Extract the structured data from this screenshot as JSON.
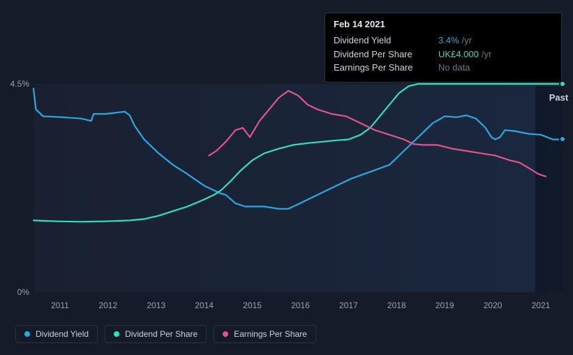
{
  "chart": {
    "type": "line",
    "background_color": "#151b29",
    "plot_gradient": [
      "rgba(30,40,60,0.4)",
      "rgba(30,50,80,0.55)"
    ],
    "past_overlay_color": "rgba(10,15,25,0.55)",
    "past_label": "Past",
    "past_start_x": 10.43,
    "grid_color": "#2a3240",
    "text_color": "#9aa3b2",
    "xlim": [
      0,
      11
    ],
    "ylim": [
      0,
      4.5
    ],
    "y_ticks": [
      {
        "v": 4.5,
        "label": "4.5%"
      },
      {
        "v": 0,
        "label": "0%"
      }
    ],
    "x_ticks": [
      {
        "v": 0.55,
        "label": "2011"
      },
      {
        "v": 1.55,
        "label": "2012"
      },
      {
        "v": 2.55,
        "label": "2013"
      },
      {
        "v": 3.55,
        "label": "2014"
      },
      {
        "v": 4.55,
        "label": "2015"
      },
      {
        "v": 5.55,
        "label": "2016"
      },
      {
        "v": 6.55,
        "label": "2017"
      },
      {
        "v": 7.55,
        "label": "2018"
      },
      {
        "v": 8.55,
        "label": "2019"
      },
      {
        "v": 9.55,
        "label": "2020"
      },
      {
        "v": 10.55,
        "label": "2021"
      }
    ],
    "line_width": 2.2,
    "series": [
      {
        "id": "dividend_yield",
        "label": "Dividend Yield",
        "color": "#2aa8e0",
        "end_dot": true,
        "points": [
          [
            0.0,
            4.4
          ],
          [
            0.05,
            3.95
          ],
          [
            0.2,
            3.8
          ],
          [
            0.6,
            3.78
          ],
          [
            1.0,
            3.75
          ],
          [
            1.2,
            3.7
          ],
          [
            1.25,
            3.85
          ],
          [
            1.5,
            3.85
          ],
          [
            1.9,
            3.9
          ],
          [
            2.0,
            3.82
          ],
          [
            2.1,
            3.6
          ],
          [
            2.3,
            3.3
          ],
          [
            2.6,
            3.0
          ],
          [
            2.9,
            2.75
          ],
          [
            3.2,
            2.55
          ],
          [
            3.55,
            2.3
          ],
          [
            3.75,
            2.2
          ],
          [
            3.9,
            2.13
          ],
          [
            4.0,
            2.1
          ],
          [
            4.2,
            1.92
          ],
          [
            4.4,
            1.85
          ],
          [
            4.8,
            1.85
          ],
          [
            5.1,
            1.8
          ],
          [
            5.3,
            1.8
          ],
          [
            5.5,
            1.9
          ],
          [
            5.8,
            2.05
          ],
          [
            6.2,
            2.25
          ],
          [
            6.6,
            2.45
          ],
          [
            7.0,
            2.6
          ],
          [
            7.4,
            2.75
          ],
          [
            7.7,
            3.05
          ],
          [
            8.0,
            3.35
          ],
          [
            8.3,
            3.65
          ],
          [
            8.55,
            3.8
          ],
          [
            8.8,
            3.78
          ],
          [
            9.0,
            3.82
          ],
          [
            9.2,
            3.75
          ],
          [
            9.4,
            3.55
          ],
          [
            9.52,
            3.35
          ],
          [
            9.6,
            3.3
          ],
          [
            9.7,
            3.35
          ],
          [
            9.8,
            3.5
          ],
          [
            10.0,
            3.48
          ],
          [
            10.3,
            3.42
          ],
          [
            10.55,
            3.4
          ],
          [
            10.8,
            3.3
          ],
          [
            11.0,
            3.3
          ]
        ]
      },
      {
        "id": "dividend_per_share",
        "label": "Dividend Per Share",
        "color": "#2de0c0",
        "end_dot": true,
        "points": [
          [
            0.0,
            1.55
          ],
          [
            0.5,
            1.53
          ],
          [
            1.0,
            1.52
          ],
          [
            1.5,
            1.53
          ],
          [
            2.0,
            1.55
          ],
          [
            2.3,
            1.58
          ],
          [
            2.6,
            1.65
          ],
          [
            2.9,
            1.75
          ],
          [
            3.2,
            1.85
          ],
          [
            3.5,
            1.98
          ],
          [
            3.75,
            2.1
          ],
          [
            3.9,
            2.2
          ],
          [
            4.1,
            2.4
          ],
          [
            4.3,
            2.62
          ],
          [
            4.55,
            2.85
          ],
          [
            4.8,
            3.0
          ],
          [
            5.1,
            3.1
          ],
          [
            5.4,
            3.18
          ],
          [
            5.7,
            3.22
          ],
          [
            6.0,
            3.25
          ],
          [
            6.3,
            3.28
          ],
          [
            6.55,
            3.3
          ],
          [
            6.8,
            3.4
          ],
          [
            7.0,
            3.55
          ],
          [
            7.2,
            3.8
          ],
          [
            7.4,
            4.05
          ],
          [
            7.6,
            4.3
          ],
          [
            7.8,
            4.45
          ],
          [
            8.0,
            4.5
          ],
          [
            8.3,
            4.5
          ],
          [
            8.7,
            4.5
          ],
          [
            9.2,
            4.5
          ],
          [
            9.7,
            4.5
          ],
          [
            10.3,
            4.5
          ],
          [
            11.0,
            4.5
          ]
        ]
      },
      {
        "id": "earnings_per_share",
        "label": "Earnings Per Share",
        "color": "#e0548f",
        "end_dot": false,
        "points": [
          [
            3.65,
            2.95
          ],
          [
            3.8,
            3.05
          ],
          [
            4.0,
            3.25
          ],
          [
            4.2,
            3.5
          ],
          [
            4.35,
            3.55
          ],
          [
            4.5,
            3.35
          ],
          [
            4.7,
            3.7
          ],
          [
            4.9,
            3.95
          ],
          [
            5.1,
            4.2
          ],
          [
            5.3,
            4.35
          ],
          [
            5.5,
            4.25
          ],
          [
            5.7,
            4.05
          ],
          [
            5.9,
            3.95
          ],
          [
            6.2,
            3.85
          ],
          [
            6.5,
            3.8
          ],
          [
            6.8,
            3.65
          ],
          [
            7.1,
            3.5
          ],
          [
            7.4,
            3.4
          ],
          [
            7.7,
            3.3
          ],
          [
            7.9,
            3.2
          ],
          [
            8.1,
            3.18
          ],
          [
            8.4,
            3.18
          ],
          [
            8.7,
            3.1
          ],
          [
            9.0,
            3.05
          ],
          [
            9.3,
            3.0
          ],
          [
            9.6,
            2.95
          ],
          [
            9.9,
            2.85
          ],
          [
            10.1,
            2.8
          ],
          [
            10.3,
            2.68
          ],
          [
            10.5,
            2.55
          ],
          [
            10.65,
            2.5
          ]
        ]
      }
    ]
  },
  "tooltip": {
    "date": "Feb 14 2021",
    "rows": [
      {
        "key": "Dividend Yield",
        "value": "3.4%",
        "unit": "/yr",
        "color": "#2aa8e0"
      },
      {
        "key": "Dividend Per Share",
        "value": "UK£4.000",
        "unit": "/yr",
        "color": "#2de0c0"
      },
      {
        "key": "Earnings Per Share",
        "value": "No data",
        "muted": true
      }
    ]
  },
  "legend": {
    "items": [
      {
        "label": "Dividend Yield",
        "color": "#2aa8e0"
      },
      {
        "label": "Dividend Per Share",
        "color": "#2de0c0"
      },
      {
        "label": "Earnings Per Share",
        "color": "#e0548f"
      }
    ]
  }
}
